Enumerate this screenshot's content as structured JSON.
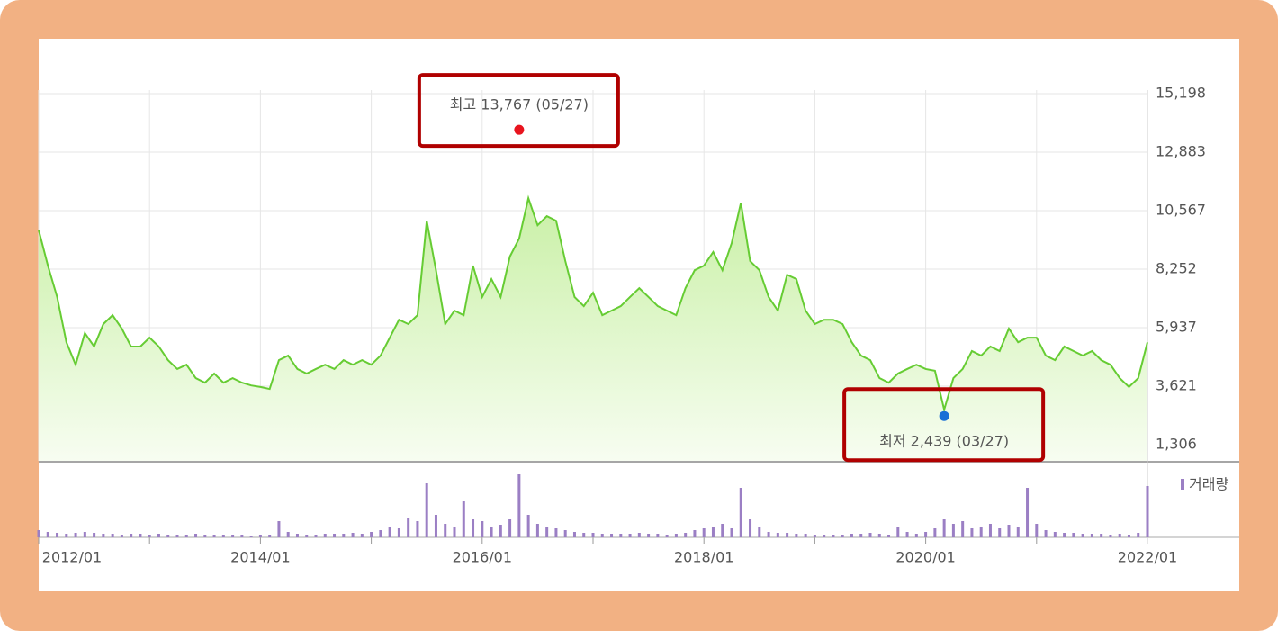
{
  "chart_data": {
    "type": "line",
    "x": [
      "2012/01",
      "2012/02",
      "2012/03",
      "2012/04",
      "2012/05",
      "2012/06",
      "2012/07",
      "2012/08",
      "2012/09",
      "2012/10",
      "2012/11",
      "2012/12",
      "2013/01",
      "2013/02",
      "2013/03",
      "2013/04",
      "2013/05",
      "2013/06",
      "2013/07",
      "2013/08",
      "2013/09",
      "2013/10",
      "2013/11",
      "2013/12",
      "2014/01",
      "2014/02",
      "2014/03",
      "2014/04",
      "2014/05",
      "2014/06",
      "2014/07",
      "2014/08",
      "2014/09",
      "2014/10",
      "2014/11",
      "2014/12",
      "2015/01",
      "2015/02",
      "2015/03",
      "2015/04",
      "2015/05",
      "2015/06",
      "2015/07",
      "2015/08",
      "2015/09",
      "2015/10",
      "2015/11",
      "2015/12",
      "2016/01",
      "2016/02",
      "2016/03",
      "2016/04",
      "2016/05",
      "2016/06",
      "2016/07",
      "2016/08",
      "2016/09",
      "2016/10",
      "2016/11",
      "2016/12",
      "2017/01",
      "2017/02",
      "2017/03",
      "2017/04",
      "2017/05",
      "2017/06",
      "2017/07",
      "2017/08",
      "2017/09",
      "2017/10",
      "2017/11",
      "2017/12",
      "2018/01",
      "2018/02",
      "2018/03",
      "2018/04",
      "2018/05",
      "2018/06",
      "2018/07",
      "2018/08",
      "2018/09",
      "2018/10",
      "2018/11",
      "2018/12",
      "2019/01",
      "2019/02",
      "2019/03",
      "2019/04",
      "2019/05",
      "2019/06",
      "2019/07",
      "2019/08",
      "2019/09",
      "2019/10",
      "2019/11",
      "2019/12",
      "2020/01",
      "2020/02",
      "2020/03",
      "2020/04",
      "2020/05",
      "2020/06",
      "2020/07",
      "2020/08",
      "2020/09",
      "2020/10",
      "2020/11",
      "2020/12",
      "2021/01",
      "2021/02",
      "2021/03",
      "2021/04",
      "2021/05",
      "2021/06",
      "2021/07",
      "2021/08",
      "2021/09",
      "2021/10",
      "2021/11",
      "2021/12",
      "2022/01"
    ],
    "series": [
      {
        "color": "#66cc33",
        "values": [
          9800,
          8390,
          7150,
          5360,
          4470,
          5720,
          5190,
          6080,
          6430,
          5900,
          5190,
          5190,
          5540,
          5190,
          4650,
          4300,
          4470,
          3940,
          3760,
          4120,
          3760,
          3940,
          3760,
          3650,
          3590,
          3510,
          4650,
          4830,
          4300,
          4120,
          4300,
          4470,
          4300,
          4650,
          4470,
          4650,
          4470,
          4830,
          5540,
          6250,
          6080,
          6430,
          10170,
          8210,
          6080,
          6610,
          6430,
          8390,
          7150,
          7860,
          7150,
          8750,
          9460,
          11060,
          9990,
          10350,
          10170,
          8570,
          7150,
          6790,
          7320,
          6430,
          6610,
          6790,
          7150,
          7500,
          7150,
          6790,
          6610,
          6430,
          7500,
          8210,
          8390,
          8930,
          8210,
          9280,
          10880,
          8570,
          8210,
          7150,
          6610,
          8030,
          7860,
          6610,
          6080,
          6250,
          6250,
          6080,
          5360,
          4830,
          4650,
          3940,
          3760,
          4120,
          4300,
          4470,
          4300,
          4230,
          2690,
          3940,
          4300,
          5010,
          4830,
          5190,
          5010,
          5900,
          5360,
          5540,
          5540,
          4830,
          4650,
          5190,
          5010,
          4830,
          5010,
          4650,
          4470,
          3940,
          3590,
          3940,
          5360
        ]
      },
      {
        "name": "거래량",
        "type": "bar",
        "axis": "y2",
        "color": "#9b7fc4",
        "values": [
          8,
          6,
          5,
          4,
          5,
          6,
          5,
          4,
          4,
          3,
          4,
          4,
          3,
          4,
          3,
          3,
          3,
          4,
          3,
          3,
          3,
          3,
          3,
          2,
          3,
          3,
          18,
          6,
          4,
          3,
          3,
          4,
          4,
          4,
          5,
          4,
          6,
          8,
          12,
          10,
          22,
          18,
          60,
          25,
          15,
          12,
          40,
          20,
          18,
          12,
          14,
          20,
          70,
          25,
          15,
          12,
          10,
          8,
          6,
          5,
          5,
          4,
          4,
          4,
          4,
          5,
          4,
          4,
          3,
          4,
          5,
          8,
          10,
          12,
          15,
          10,
          55,
          20,
          12,
          6,
          5,
          5,
          4,
          4,
          3,
          3,
          3,
          3,
          4,
          4,
          5,
          4,
          3,
          12,
          6,
          4,
          6,
          10,
          20,
          15,
          18,
          10,
          12,
          15,
          10,
          14,
          12,
          55,
          15,
          8,
          6,
          5,
          5,
          4,
          4,
          4,
          3,
          4,
          3,
          5,
          57
        ]
      }
    ],
    "ylim": [
      1306,
      15198
    ],
    "yticks": [
      {
        "value": 1306,
        "label": "1,306"
      },
      {
        "value": 3621,
        "label": "3,621"
      },
      {
        "value": 5937,
        "label": "5,937"
      },
      {
        "value": 8252,
        "label": "8,252"
      },
      {
        "value": 10567,
        "label": "10,567"
      },
      {
        "value": 12883,
        "label": "12,883"
      },
      {
        "value": 15198,
        "label": "15,198"
      }
    ],
    "y2lim": [
      0,
      80
    ],
    "grid": true,
    "annotations": [
      {
        "text": "최고 13,767 (05/27)",
        "value": 13767,
        "x": "2016/05",
        "color": "#e8141e"
      },
      {
        "text": "최저 2,439 (03/27)",
        "value": 2439,
        "x": "2020/03",
        "color": "#1a6fd6"
      }
    ]
  }
}
